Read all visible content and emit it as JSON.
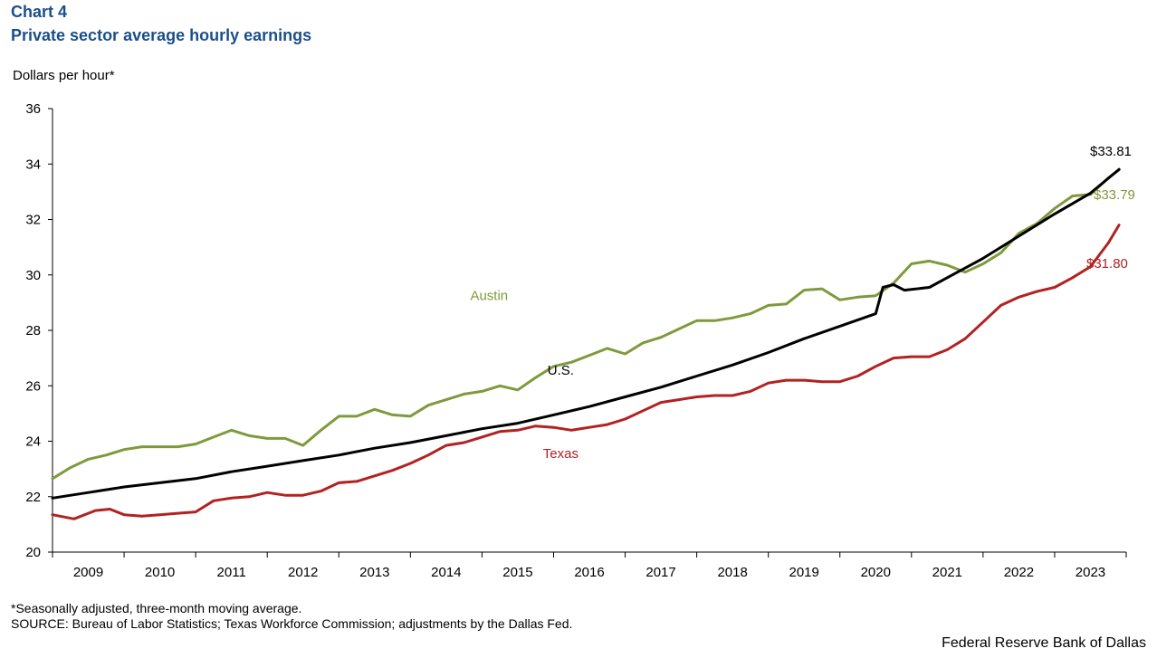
{
  "header": {
    "chart_number": "Chart 4",
    "title": "Private sector average hourly earnings"
  },
  "footer": {
    "footnote": "*Seasonally adjusted, three-month moving average.",
    "source": "SOURCE: Bureau of Labor Statistics; Texas Workforce Commission; adjustments by the Dallas Fed.",
    "credit": "Federal Reserve Bank of Dallas"
  },
  "chart_data": {
    "type": "line",
    "title": "Private sector average hourly earnings",
    "xlabel": "",
    "ylabel": "Dollars per hour*",
    "ylim": [
      20,
      36
    ],
    "yticks": [
      20,
      22,
      24,
      26,
      28,
      30,
      32,
      34,
      36
    ],
    "xlim": [
      2009.0,
      2024.0
    ],
    "x_tick_labels": [
      "2009",
      "2010",
      "2011",
      "2012",
      "2013",
      "2014",
      "2015",
      "2016",
      "2017",
      "2018",
      "2019",
      "2020",
      "2021",
      "2022",
      "2023"
    ],
    "grid": false,
    "series": [
      {
        "name": "Austin",
        "label": "Austin",
        "color": "#7f9a3c",
        "end_label": "$33.79",
        "points": [
          [
            2009.0,
            22.65
          ],
          [
            2009.25,
            23.05
          ],
          [
            2009.5,
            23.35
          ],
          [
            2009.75,
            23.5
          ],
          [
            2010.0,
            23.7
          ],
          [
            2010.25,
            23.8
          ],
          [
            2010.5,
            23.8
          ],
          [
            2010.75,
            23.8
          ],
          [
            2011.0,
            23.9
          ],
          [
            2011.25,
            24.15
          ],
          [
            2011.5,
            24.4
          ],
          [
            2011.75,
            24.2
          ],
          [
            2012.0,
            24.1
          ],
          [
            2012.25,
            24.1
          ],
          [
            2012.5,
            23.85
          ],
          [
            2012.75,
            24.4
          ],
          [
            2013.0,
            24.9
          ],
          [
            2013.25,
            24.9
          ],
          [
            2013.5,
            25.15
          ],
          [
            2013.75,
            24.95
          ],
          [
            2014.0,
            24.9
          ],
          [
            2014.25,
            25.3
          ],
          [
            2014.5,
            25.5
          ],
          [
            2014.75,
            25.7
          ],
          [
            2015.0,
            25.8
          ],
          [
            2015.25,
            26.0
          ],
          [
            2015.5,
            25.85
          ],
          [
            2015.75,
            26.3
          ],
          [
            2016.0,
            26.7
          ],
          [
            2016.25,
            26.85
          ],
          [
            2016.5,
            27.1
          ],
          [
            2016.75,
            27.35
          ],
          [
            2017.0,
            27.15
          ],
          [
            2017.25,
            27.55
          ],
          [
            2017.5,
            27.75
          ],
          [
            2017.75,
            28.05
          ],
          [
            2018.0,
            28.35
          ],
          [
            2018.25,
            28.35
          ],
          [
            2018.5,
            28.45
          ],
          [
            2018.75,
            28.6
          ],
          [
            2019.0,
            28.9
          ],
          [
            2019.25,
            28.95
          ],
          [
            2019.5,
            29.45
          ],
          [
            2019.75,
            29.5
          ],
          [
            2020.0,
            29.1
          ],
          [
            2020.25,
            29.2
          ],
          [
            2020.5,
            29.25
          ],
          [
            2020.75,
            29.7
          ],
          [
            2021.0,
            30.4
          ],
          [
            2021.25,
            30.5
          ],
          [
            2021.5,
            30.35
          ],
          [
            2021.75,
            30.1
          ],
          [
            2022.0,
            30.4
          ],
          [
            2022.25,
            30.8
          ],
          [
            2022.5,
            31.5
          ],
          [
            2022.75,
            31.85
          ],
          [
            2023.0,
            32.4
          ],
          [
            2023.25,
            32.85
          ],
          [
            2023.5,
            32.9
          ],
          [
            2023.75,
            33.5
          ],
          [
            2023.9,
            33.79
          ]
        ]
      },
      {
        "name": "U.S.",
        "label": "U.S.",
        "color": "#000000",
        "end_label": "$33.81",
        "points": [
          [
            2009.0,
            21.95
          ],
          [
            2009.5,
            22.15
          ],
          [
            2010.0,
            22.35
          ],
          [
            2010.5,
            22.5
          ],
          [
            2011.0,
            22.65
          ],
          [
            2011.5,
            22.9
          ],
          [
            2012.0,
            23.1
          ],
          [
            2012.5,
            23.3
          ],
          [
            2013.0,
            23.5
          ],
          [
            2013.5,
            23.75
          ],
          [
            2014.0,
            23.95
          ],
          [
            2014.5,
            24.2
          ],
          [
            2015.0,
            24.45
          ],
          [
            2015.5,
            24.65
          ],
          [
            2016.0,
            24.95
          ],
          [
            2016.5,
            25.25
          ],
          [
            2017.0,
            25.6
          ],
          [
            2017.5,
            25.95
          ],
          [
            2018.0,
            26.35
          ],
          [
            2018.5,
            26.75
          ],
          [
            2019.0,
            27.2
          ],
          [
            2019.5,
            27.7
          ],
          [
            2020.0,
            28.15
          ],
          [
            2020.5,
            28.6
          ],
          [
            2020.6,
            29.55
          ],
          [
            2020.75,
            29.65
          ],
          [
            2020.9,
            29.45
          ],
          [
            2021.25,
            29.55
          ],
          [
            2021.5,
            29.9
          ],
          [
            2022.0,
            30.6
          ],
          [
            2022.5,
            31.4
          ],
          [
            2023.0,
            32.2
          ],
          [
            2023.5,
            32.95
          ],
          [
            2023.9,
            33.81
          ]
        ]
      },
      {
        "name": "Texas",
        "label": "Texas",
        "color": "#b22222",
        "end_label": "$31.80",
        "points": [
          [
            2009.0,
            21.35
          ],
          [
            2009.3,
            21.2
          ],
          [
            2009.6,
            21.5
          ],
          [
            2009.8,
            21.55
          ],
          [
            2010.0,
            21.35
          ],
          [
            2010.25,
            21.3
          ],
          [
            2010.5,
            21.35
          ],
          [
            2010.75,
            21.4
          ],
          [
            2011.0,
            21.45
          ],
          [
            2011.25,
            21.85
          ],
          [
            2011.5,
            21.95
          ],
          [
            2011.75,
            22.0
          ],
          [
            2012.0,
            22.15
          ],
          [
            2012.25,
            22.05
          ],
          [
            2012.5,
            22.05
          ],
          [
            2012.75,
            22.2
          ],
          [
            2013.0,
            22.5
          ],
          [
            2013.25,
            22.55
          ],
          [
            2013.5,
            22.75
          ],
          [
            2013.75,
            22.95
          ],
          [
            2014.0,
            23.2
          ],
          [
            2014.25,
            23.5
          ],
          [
            2014.5,
            23.85
          ],
          [
            2014.75,
            23.95
          ],
          [
            2015.0,
            24.15
          ],
          [
            2015.25,
            24.35
          ],
          [
            2015.5,
            24.4
          ],
          [
            2015.75,
            24.55
          ],
          [
            2016.0,
            24.5
          ],
          [
            2016.25,
            24.4
          ],
          [
            2016.5,
            24.5
          ],
          [
            2016.75,
            24.6
          ],
          [
            2017.0,
            24.8
          ],
          [
            2017.25,
            25.1
          ],
          [
            2017.5,
            25.4
          ],
          [
            2017.75,
            25.5
          ],
          [
            2018.0,
            25.6
          ],
          [
            2018.25,
            25.65
          ],
          [
            2018.5,
            25.65
          ],
          [
            2018.75,
            25.8
          ],
          [
            2019.0,
            26.1
          ],
          [
            2019.25,
            26.2
          ],
          [
            2019.5,
            26.2
          ],
          [
            2019.75,
            26.15
          ],
          [
            2020.0,
            26.15
          ],
          [
            2020.25,
            26.35
          ],
          [
            2020.5,
            26.7
          ],
          [
            2020.75,
            27.0
          ],
          [
            2021.0,
            27.05
          ],
          [
            2021.25,
            27.05
          ],
          [
            2021.5,
            27.3
          ],
          [
            2021.75,
            27.7
          ],
          [
            2022.0,
            28.3
          ],
          [
            2022.25,
            28.9
          ],
          [
            2022.5,
            29.2
          ],
          [
            2022.75,
            29.4
          ],
          [
            2023.0,
            29.55
          ],
          [
            2023.25,
            29.9
          ],
          [
            2023.5,
            30.3
          ],
          [
            2023.75,
            31.15
          ],
          [
            2023.9,
            31.8
          ]
        ]
      }
    ]
  }
}
